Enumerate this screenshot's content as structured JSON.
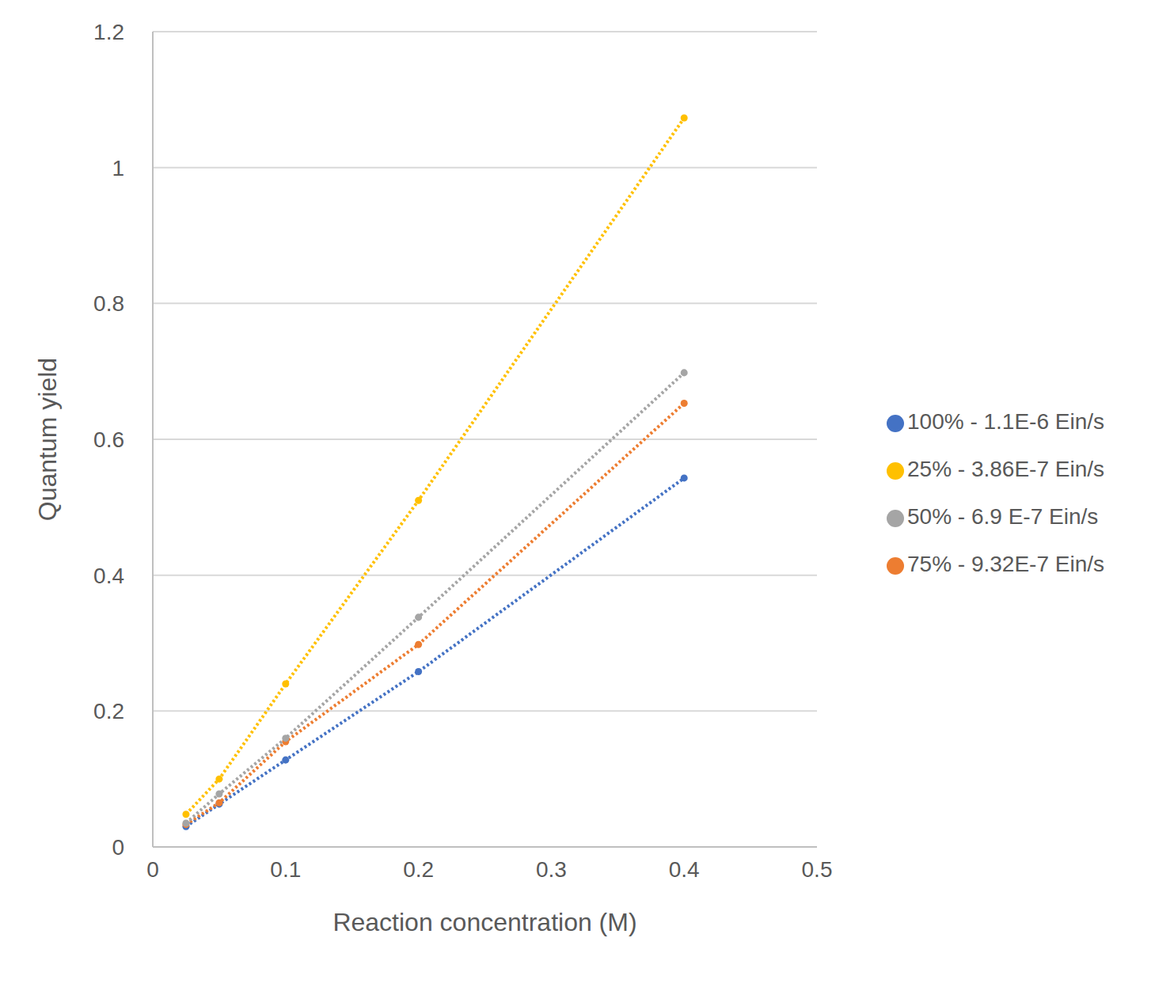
{
  "chart_data": {
    "type": "scatter",
    "x_label": "Reaction concentration (M)",
    "y_label": "Quantum yield",
    "x": [
      0.025,
      0.05,
      0.1,
      0.2,
      0.4
    ],
    "xlim": [
      0,
      0.5
    ],
    "xticks": [
      0,
      0.1,
      0.2,
      0.3,
      0.4,
      0.5
    ],
    "ylim": [
      0,
      1.2
    ],
    "yticks": [
      0,
      0.2,
      0.4,
      0.6,
      0.8,
      1,
      1.2
    ],
    "grid": true,
    "legend": "right",
    "marker": "circle",
    "line_style": "dotted",
    "series": [
      {
        "name": "100% - 1.1E-6 Ein/s",
        "color": "#4472c4",
        "values": [
          0.03,
          0.063,
          0.128,
          0.258,
          0.543
        ]
      },
      {
        "name": "75% - 9.32E-7 Ein/s",
        "color": "#ed7d31",
        "values": [
          0.033,
          0.065,
          0.155,
          0.298,
          0.653
        ]
      },
      {
        "name": "50% - 6.9 E-7 Ein/s",
        "color": "#a5a5a5",
        "values": [
          0.035,
          0.078,
          0.16,
          0.338,
          0.698
        ]
      },
      {
        "name": "25% - 3.86E-7 Ein/s",
        "color": "#ffc000",
        "values": [
          0.048,
          0.1,
          0.24,
          0.51,
          1.073
        ]
      }
    ]
  }
}
